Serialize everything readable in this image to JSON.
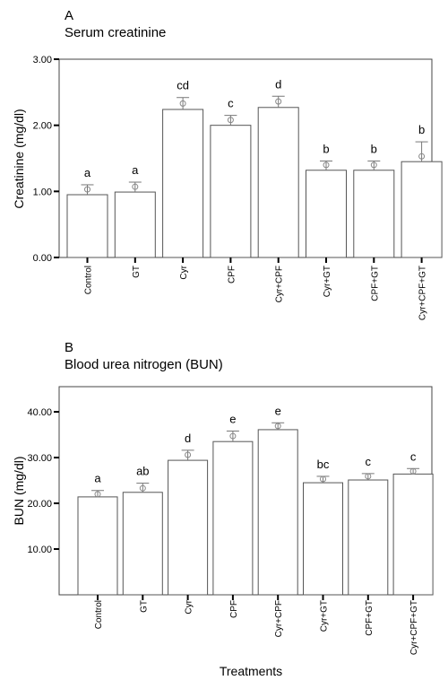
{
  "chart_data": [
    {
      "type": "bar",
      "panel_label": "A",
      "title": "Serum creatinine",
      "ylabel": "Creatinine (mg/dl)",
      "xlabel": "",
      "categories": [
        "Control",
        "GT",
        "Cyr",
        "CPF",
        "Cyr+CPF",
        "Cyr+GT",
        "CPF+GT",
        "Cyr+CPF+GT"
      ],
      "values": [
        0.95,
        0.99,
        2.24,
        2.0,
        2.27,
        1.32,
        1.32,
        1.45
      ],
      "error_upper": [
        1.1,
        1.14,
        2.42,
        2.15,
        2.44,
        1.46,
        1.46,
        1.75
      ],
      "point_marker": [
        1.03,
        1.07,
        2.33,
        2.08,
        2.36,
        1.4,
        1.4,
        1.53
      ],
      "significance_letters": [
        "a",
        "a",
        "cd",
        "c",
        "d",
        "b",
        "b",
        "b"
      ],
      "yticks": [
        "0.00",
        "1.00",
        "2.00",
        "3.00"
      ],
      "ylim": [
        0,
        3.0
      ],
      "grid": false,
      "legend": "none"
    },
    {
      "type": "bar",
      "panel_label": "B",
      "title": "Blood urea nitrogen (BUN)",
      "ylabel": "BUN (mg/dl)",
      "xlabel": "Treatments",
      "categories": [
        "Control",
        "GT",
        "Cyr",
        "CPF",
        "Cyr+CPF",
        "Cyr+GT",
        "CPF+GT",
        "Cyr+CPF+GT"
      ],
      "values": [
        21.4,
        22.4,
        29.4,
        33.5,
        36.1,
        24.5,
        25.1,
        26.4
      ],
      "error_upper": [
        22.8,
        24.4,
        31.6,
        35.8,
        37.6,
        25.9,
        26.5,
        27.6
      ],
      "point_marker": [
        22.0,
        23.3,
        30.6,
        34.7,
        36.9,
        25.3,
        25.9,
        27.0
      ],
      "significance_letters": [
        "a",
        "ab",
        "d",
        "e",
        "e",
        "bc",
        "c",
        "c"
      ],
      "yticks": [
        "10.00",
        "20.00",
        "30.00",
        "40.00"
      ],
      "ylim": [
        0,
        45.5
      ],
      "grid": false,
      "legend": "none"
    }
  ]
}
